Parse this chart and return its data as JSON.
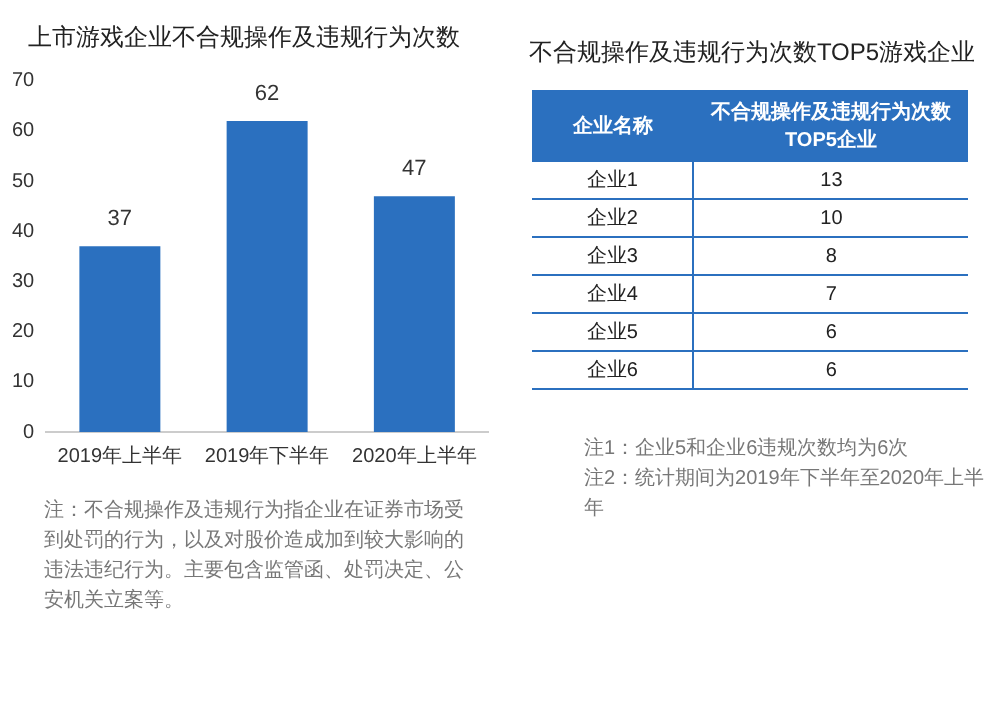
{
  "chart_data": [
    {
      "type": "bar",
      "title": "上市游戏企业不合规操作及违规行为次数",
      "categories": [
        "2019年上半年",
        "2019年下半年",
        "2020年上半年"
      ],
      "values": [
        37,
        62,
        47
      ],
      "color": "#2b70bf",
      "ylim": [
        0,
        70
      ],
      "yticks": [
        0,
        10,
        20,
        30,
        40,
        50,
        60,
        70
      ],
      "grid": false,
      "legend": false,
      "data_labels": true,
      "annotations": [
        "注：不合规操作及违规行为指企业在证券市场受到处罚的行为，以及对股价造成加到较大影响的违法违纪行为。主要包含监管函、处罚决定、公安机关立案等。"
      ]
    },
    {
      "type": "other",
      "title": "不合规操作及违规行为次数TOP5游戏企业",
      "categories": [
        "企业1",
        "企业2",
        "企业3",
        "企业4",
        "企业5",
        "企业6"
      ],
      "values": [
        13,
        10,
        8,
        7,
        6,
        6
      ],
      "color": "#2b70bf",
      "data_labels": true,
      "annotations": [
        "企业名称",
        "不合规操作及违规行为次数TOP5企业",
        "注1：企业5和企业6违规次数均为6次",
        "注2：统计期间为2019年下半年至2020年上半年"
      ]
    }
  ]
}
